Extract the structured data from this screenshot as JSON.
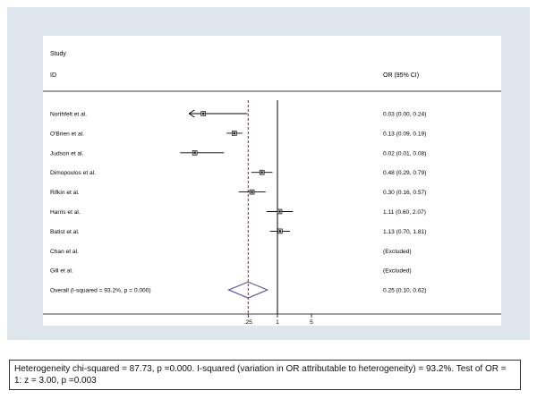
{
  "chart_data": {
    "type": "forest",
    "header": {
      "study_line1": "Study",
      "study_line2": "ID",
      "estimate": "OR (95% CI)"
    },
    "studies": [
      {
        "label": "Northfelt et al.",
        "or": 0.03,
        "lo": 0.0,
        "hi": 0.24,
        "text": "0.03 (0.00, 0.24)",
        "arrow_left": true
      },
      {
        "label": "O'Brien et al.",
        "or": 0.13,
        "lo": 0.09,
        "hi": 0.19,
        "text": "0.13 (0.09, 0.19)"
      },
      {
        "label": "Judson et al.",
        "or": 0.02,
        "lo": 0.01,
        "hi": 0.08,
        "text": "0.02 (0.01, 0.08)"
      },
      {
        "label": "Dimopoulos et al.",
        "or": 0.48,
        "lo": 0.29,
        "hi": 0.79,
        "text": "0.48 (0.29, 0.79)"
      },
      {
        "label": "Rifkin et al.",
        "or": 0.3,
        "lo": 0.16,
        "hi": 0.57,
        "text": "0.30 (0.16, 0.57)"
      },
      {
        "label": "Harris et al.",
        "or": 1.11,
        "lo": 0.6,
        "hi": 2.07,
        "text": "1.11 (0.60, 2.07)"
      },
      {
        "label": "Batist et al.",
        "or": 1.13,
        "lo": 0.7,
        "hi": 1.81,
        "text": "1.13 (0.70, 1.81)"
      },
      {
        "label": "Chan et al.",
        "or": null,
        "text": "(Excluded)"
      },
      {
        "label": "Gill et al.",
        "or": null,
        "text": "(Excluded)"
      }
    ],
    "overall": {
      "label": "Overall  (I-squared = 93.2%, p = 0.000)",
      "or": 0.25,
      "lo": 0.1,
      "hi": 0.62,
      "text": "0.25 (0.10, 0.62)"
    },
    "x_ticks": [
      {
        "value": 0.25,
        "label": ".25"
      },
      {
        "value": 1,
        "label": "1"
      },
      {
        "value": 5,
        "label": "5"
      }
    ],
    "x_scale": "log",
    "x_lim": [
      0.01,
      10
    ],
    "reference_line": 1,
    "colors": {
      "background": "#dfe6ec",
      "overall_diamond": "#6a5a9e",
      "overall_line": "#8b1a2b",
      "ci": "#000000"
    }
  },
  "caption": "Heterogeneity chi-squared = 87.73, p =0.000. I-squared (variation in OR attributable to heterogeneity) = 93.2%. Test of OR = 1:  z = 3.00,  p =0.003"
}
